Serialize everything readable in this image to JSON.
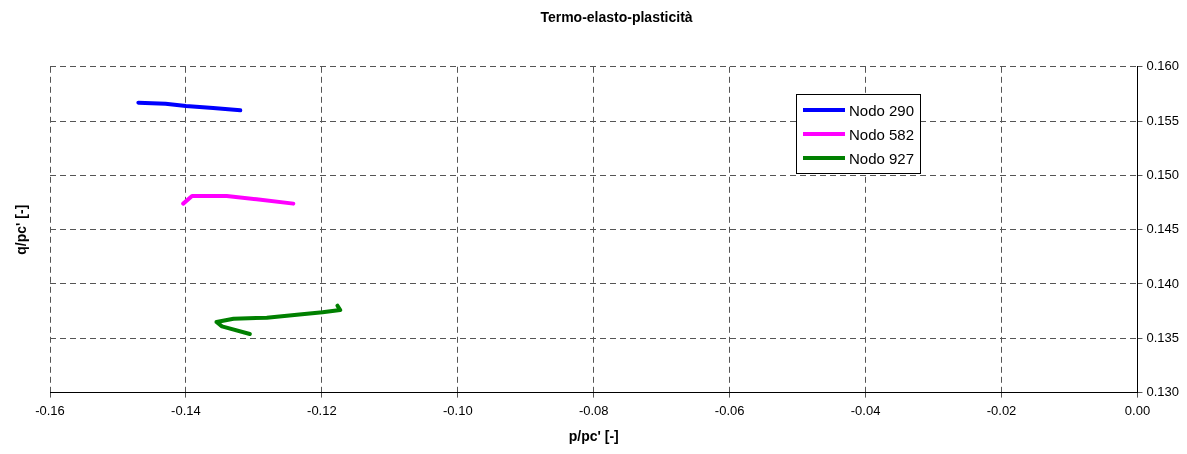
{
  "chart_data": {
    "type": "line",
    "title": "Termo-elasto-plasticità",
    "xlabel": "p/pc' [-]",
    "ylabel": "q/pc' [-]",
    "xlim": [
      -0.16,
      0
    ],
    "xticks": [
      -0.16,
      -0.14,
      -0.12,
      {
        "value": -0.1,
        "label": "-0.10"
      },
      -0.08,
      -0.06,
      -0.04,
      -0.02,
      {
        "value": 0,
        "label": "0.00"
      }
    ],
    "ylim": [
      0.13,
      0.16
    ],
    "yticks": [
      {
        "value": 0.13,
        "label": "0.130"
      },
      0.135,
      {
        "value": 0.14,
        "label": "0.140"
      },
      0.145,
      {
        "value": 0.15,
        "label": "0.150"
      },
      0.155,
      {
        "value": 0.16,
        "label": "0.160"
      }
    ],
    "grid": true,
    "legend": "top right",
    "marker": "none",
    "line_style": "solid",
    "series": [
      {
        "name": "Nodo 290",
        "color": "#0000ff",
        "x": [
          -0.147,
          -0.143,
          -0.14,
          -0.136,
          -0.132
        ],
        "values": [
          0.1567,
          0.1566,
          0.1564,
          0.1562,
          0.156
        ]
      },
      {
        "name": "Nodo 582",
        "color": "#ff00ff",
        "x": [
          -0.1404,
          -0.1391,
          -0.134,
          -0.1296,
          -0.1242
        ],
        "values": [
          0.1474,
          0.1481,
          0.1481,
          0.1478,
          0.1474
        ]
      },
      {
        "name": "Nodo 927",
        "color": "#008000",
        "x": [
          -0.1177,
          -0.1173,
          -0.1199,
          -0.1233,
          -0.1281,
          -0.133,
          -0.1355,
          -0.1347,
          -0.1306
        ],
        "values": [
          0.138,
          0.1376,
          0.1374,
          0.1372,
          0.1369,
          0.1368,
          0.1365,
          0.1361,
          0.1354
        ]
      }
    ]
  }
}
